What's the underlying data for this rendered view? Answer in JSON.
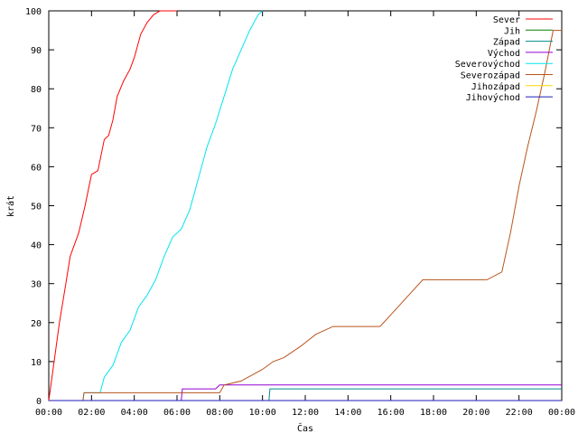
{
  "chart_data": {
    "type": "line",
    "xlabel": "Čas",
    "ylabel": "krát",
    "xlim": [
      0,
      24
    ],
    "ylim": [
      0,
      100
    ],
    "x_ticks": [
      0,
      2,
      4,
      6,
      8,
      10,
      12,
      14,
      16,
      18,
      20,
      22,
      24
    ],
    "x_tick_labels": [
      "00:00",
      "02:00",
      "04:00",
      "06:00",
      "08:00",
      "10:00",
      "12:00",
      "14:00",
      "16:00",
      "18:00",
      "20:00",
      "22:00",
      "00:00"
    ],
    "y_ticks": [
      0,
      10,
      20,
      30,
      40,
      50,
      60,
      70,
      80,
      90,
      100
    ],
    "y_tick_labels": [
      "0",
      "10",
      "20",
      "30",
      "40",
      "50",
      "60",
      "70",
      "80",
      "90",
      "100"
    ],
    "grid": false,
    "legend_position": "top-right",
    "series": [
      {
        "name": "Sever",
        "color": "#ff0000",
        "x": [
          0.0,
          0.3,
          0.5,
          0.8,
          1.0,
          1.4,
          1.7,
          2.0,
          2.3,
          2.6,
          2.8,
          3.0,
          3.2,
          3.5,
          3.8,
          4.0,
          4.3,
          4.6,
          4.9,
          5.2,
          5.5,
          5.8,
          6.0
        ],
        "y": [
          0,
          12,
          20,
          30,
          37,
          43,
          50,
          58,
          59,
          67,
          68,
          72,
          78,
          82,
          85,
          88,
          94,
          97,
          99,
          100,
          100,
          100,
          100
        ]
      },
      {
        "name": "Jih",
        "color": "#008000",
        "x": [
          0.0,
          24.0
        ],
        "y": [
          0,
          0
        ]
      },
      {
        "name": "Západ",
        "color": "#008b8b",
        "x": [
          0.0,
          10.3,
          10.35,
          24.0
        ],
        "y": [
          0,
          0,
          3,
          3
        ]
      },
      {
        "name": "Východ",
        "color": "#9400d3",
        "x": [
          0.0,
          6.2,
          6.25,
          7.8,
          8.0,
          8.4,
          24.0
        ],
        "y": [
          0,
          0,
          3,
          3,
          4,
          4,
          4
        ]
      },
      {
        "name": "Severovýchod",
        "color": "#00e5ee",
        "x": [
          0.0,
          1.6,
          1.65,
          2.4,
          2.6,
          3.0,
          3.4,
          3.8,
          4.2,
          4.6,
          5.0,
          5.4,
          5.8,
          6.2,
          6.6,
          7.0,
          7.4,
          7.8,
          8.2,
          8.6,
          9.0,
          9.4,
          9.8,
          10.0
        ],
        "y": [
          0,
          0,
          2,
          2,
          6,
          9,
          15,
          18,
          24,
          27,
          31,
          37,
          42,
          44,
          49,
          57,
          65,
          71,
          78,
          85,
          90,
          95,
          99,
          100
        ]
      },
      {
        "name": "Severozápad",
        "color": "#b8541c",
        "x": [
          0.0,
          1.6,
          1.65,
          8.0,
          8.2,
          9.0,
          10.0,
          10.5,
          11.0,
          11.8,
          12.5,
          13.3,
          15.5,
          16.0,
          16.5,
          17.0,
          17.5,
          20.5,
          21.2,
          21.6,
          22.0,
          22.4,
          22.8,
          23.2,
          23.6,
          24.0
        ],
        "y": [
          0,
          0,
          2,
          2,
          4,
          5,
          8,
          10,
          11,
          14,
          17,
          19,
          19,
          22,
          25,
          28,
          31,
          31,
          33,
          43,
          55,
          65,
          74,
          84,
          95,
          95
        ]
      },
      {
        "name": "Jihozápad",
        "color": "#ffd700",
        "x": [
          0.0,
          24.0
        ],
        "y": [
          0,
          0
        ]
      },
      {
        "name": "Jihovýchod",
        "color": "#1c1cb8",
        "x": [
          0.0,
          24.0
        ],
        "y": [
          0,
          0
        ]
      }
    ]
  }
}
